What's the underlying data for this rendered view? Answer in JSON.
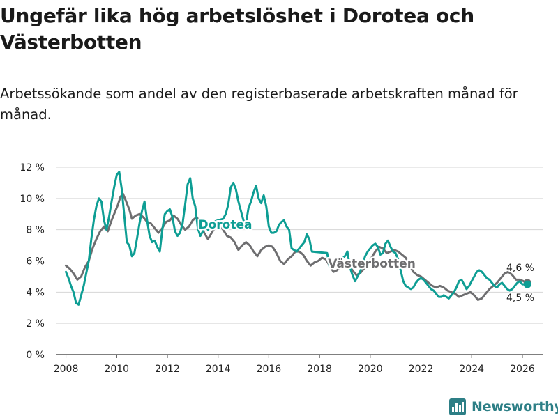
{
  "title": "Ungefär lika hög arbetslöshet i Dorotea och Västerbotten",
  "subtitle": "Arbetssökande som andel av den registerbaserade arbetskraften månad för månad.",
  "brand": "Newsworthy",
  "brand_icon": "newsworthy-logo-icon",
  "colors": {
    "dorotea": "#0e9e94",
    "vasterbotten": "#6e6e70",
    "grid": "#d6d6d6",
    "axis": "#333333",
    "brand": "#2d7f86"
  },
  "chart_data": {
    "type": "line",
    "title": "Ungefär lika hög arbetslöshet i Dorotea och Västerbotten",
    "xlabel": "",
    "ylabel": "",
    "xlim": [
      2007.6,
      2026.8
    ],
    "ylim": [
      0,
      12
    ],
    "yticks": [
      0,
      2,
      4,
      6,
      8,
      10,
      12
    ],
    "ytick_labels": [
      "0 %",
      "2 %",
      "4 %",
      "6 %",
      "8 %",
      "10 %",
      "12 %"
    ],
    "xticks": [
      2008,
      2010,
      2012,
      2014,
      2016,
      2018,
      2020,
      2022,
      2024,
      2026
    ],
    "xtick_labels": [
      "2008",
      "2010",
      "2012",
      "2014",
      "2016",
      "2018",
      "2020",
      "2022",
      "2024",
      "2026"
    ],
    "grid": true,
    "series": [
      {
        "name": "Västerbotten",
        "label": "Västerbotten",
        "end_label": "4,6 %",
        "points": [
          [
            2008.0,
            5.7
          ],
          [
            2008.15,
            5.5
          ],
          [
            2008.3,
            5.2
          ],
          [
            2008.45,
            4.8
          ],
          [
            2008.6,
            5.0
          ],
          [
            2008.75,
            5.6
          ],
          [
            2008.9,
            6.0
          ],
          [
            2009.05,
            6.8
          ],
          [
            2009.2,
            7.4
          ],
          [
            2009.35,
            7.9
          ],
          [
            2009.5,
            8.2
          ],
          [
            2009.65,
            7.9
          ],
          [
            2009.8,
            8.6
          ],
          [
            2009.95,
            9.2
          ],
          [
            2010.05,
            9.6
          ],
          [
            2010.15,
            10.1
          ],
          [
            2010.25,
            10.3
          ],
          [
            2010.35,
            9.9
          ],
          [
            2010.5,
            9.3
          ],
          [
            2010.6,
            8.7
          ],
          [
            2010.75,
            8.9
          ],
          [
            2010.9,
            9.0
          ],
          [
            2011.05,
            8.8
          ],
          [
            2011.2,
            8.5
          ],
          [
            2011.35,
            8.4
          ],
          [
            2011.5,
            8.1
          ],
          [
            2011.65,
            7.8
          ],
          [
            2011.8,
            8.1
          ],
          [
            2011.95,
            8.5
          ],
          [
            2012.1,
            8.6
          ],
          [
            2012.25,
            8.9
          ],
          [
            2012.4,
            8.7
          ],
          [
            2012.55,
            8.3
          ],
          [
            2012.7,
            8.0
          ],
          [
            2012.85,
            8.2
          ],
          [
            2013.0,
            8.6
          ],
          [
            2013.15,
            8.8
          ],
          [
            2013.3,
            8.5
          ],
          [
            2013.45,
            7.8
          ],
          [
            2013.6,
            7.4
          ],
          [
            2013.75,
            7.8
          ],
          [
            2013.9,
            8.2
          ],
          [
            2014.05,
            8.4
          ],
          [
            2014.2,
            8.0
          ],
          [
            2014.35,
            7.6
          ],
          [
            2014.5,
            7.5
          ],
          [
            2014.65,
            7.2
          ],
          [
            2014.8,
            6.7
          ],
          [
            2014.95,
            7.0
          ],
          [
            2015.1,
            7.2
          ],
          [
            2015.25,
            7.0
          ],
          [
            2015.4,
            6.6
          ],
          [
            2015.55,
            6.3
          ],
          [
            2015.7,
            6.7
          ],
          [
            2015.85,
            6.9
          ],
          [
            2016.0,
            7.0
          ],
          [
            2016.15,
            6.9
          ],
          [
            2016.3,
            6.5
          ],
          [
            2016.45,
            6.0
          ],
          [
            2016.6,
            5.8
          ],
          [
            2016.75,
            6.1
          ],
          [
            2016.9,
            6.3
          ],
          [
            2017.05,
            6.6
          ],
          [
            2017.2,
            6.6
          ],
          [
            2017.35,
            6.4
          ],
          [
            2017.5,
            6.0
          ],
          [
            2017.65,
            5.7
          ],
          [
            2017.8,
            5.9
          ],
          [
            2017.95,
            6.0
          ],
          [
            2018.1,
            6.2
          ],
          [
            2018.25,
            6.1
          ],
          [
            2018.4,
            5.7
          ],
          [
            2018.55,
            5.3
          ],
          [
            2018.7,
            5.4
          ],
          [
            2018.85,
            5.7
          ],
          [
            2019.0,
            5.9
          ],
          [
            2019.15,
            5.8
          ],
          [
            2019.3,
            5.4
          ],
          [
            2019.45,
            5.1
          ],
          [
            2019.6,
            5.2
          ],
          [
            2019.75,
            5.5
          ],
          [
            2019.9,
            5.8
          ],
          [
            2020.05,
            6.2
          ],
          [
            2020.2,
            6.6
          ],
          [
            2020.35,
            6.9
          ],
          [
            2020.5,
            6.8
          ],
          [
            2020.65,
            6.5
          ],
          [
            2020.8,
            6.6
          ],
          [
            2020.95,
            6.7
          ],
          [
            2021.1,
            6.6
          ],
          [
            2021.25,
            6.4
          ],
          [
            2021.4,
            6.2
          ],
          [
            2021.55,
            5.7
          ],
          [
            2021.7,
            5.3
          ],
          [
            2021.85,
            5.1
          ],
          [
            2022.0,
            5.0
          ],
          [
            2022.15,
            4.8
          ],
          [
            2022.3,
            4.6
          ],
          [
            2022.45,
            4.4
          ],
          [
            2022.6,
            4.3
          ],
          [
            2022.75,
            4.4
          ],
          [
            2022.9,
            4.3
          ],
          [
            2023.05,
            4.1
          ],
          [
            2023.2,
            4.0
          ],
          [
            2023.35,
            3.9
          ],
          [
            2023.5,
            3.7
          ],
          [
            2023.65,
            3.8
          ],
          [
            2023.8,
            3.9
          ],
          [
            2023.95,
            4.0
          ],
          [
            2024.1,
            3.8
          ],
          [
            2024.25,
            3.5
          ],
          [
            2024.4,
            3.6
          ],
          [
            2024.55,
            3.9
          ],
          [
            2024.7,
            4.2
          ],
          [
            2024.85,
            4.4
          ],
          [
            2025.0,
            4.6
          ],
          [
            2025.15,
            4.9
          ],
          [
            2025.3,
            5.2
          ],
          [
            2025.45,
            5.3
          ],
          [
            2025.6,
            5.1
          ],
          [
            2025.75,
            4.8
          ],
          [
            2025.9,
            4.8
          ],
          [
            2026.05,
            4.7
          ],
          [
            2026.2,
            4.6
          ]
        ]
      },
      {
        "name": "Dorotea",
        "label": "Dorotea",
        "end_label": "4,5 %",
        "points": [
          [
            2008.0,
            5.3
          ],
          [
            2008.1,
            4.9
          ],
          [
            2008.2,
            4.4
          ],
          [
            2008.3,
            4.0
          ],
          [
            2008.4,
            3.3
          ],
          [
            2008.5,
            3.2
          ],
          [
            2008.6,
            3.8
          ],
          [
            2008.7,
            4.4
          ],
          [
            2008.8,
            5.2
          ],
          [
            2008.9,
            6.0
          ],
          [
            2009.0,
            7.4
          ],
          [
            2009.1,
            8.6
          ],
          [
            2009.2,
            9.5
          ],
          [
            2009.3,
            10.0
          ],
          [
            2009.4,
            9.8
          ],
          [
            2009.5,
            8.6
          ],
          [
            2009.6,
            8.0
          ],
          [
            2009.7,
            8.8
          ],
          [
            2009.8,
            9.8
          ],
          [
            2009.9,
            10.7
          ],
          [
            2010.0,
            11.5
          ],
          [
            2010.1,
            11.7
          ],
          [
            2010.2,
            10.6
          ],
          [
            2010.3,
            8.9
          ],
          [
            2010.4,
            7.2
          ],
          [
            2010.5,
            7.0
          ],
          [
            2010.6,
            6.3
          ],
          [
            2010.7,
            6.5
          ],
          [
            2010.8,
            7.4
          ],
          [
            2010.9,
            8.4
          ],
          [
            2011.0,
            9.2
          ],
          [
            2011.1,
            9.8
          ],
          [
            2011.2,
            8.6
          ],
          [
            2011.3,
            7.6
          ],
          [
            2011.4,
            7.2
          ],
          [
            2011.5,
            7.3
          ],
          [
            2011.6,
            6.9
          ],
          [
            2011.7,
            6.6
          ],
          [
            2011.8,
            8.0
          ],
          [
            2011.9,
            9.0
          ],
          [
            2012.0,
            9.2
          ],
          [
            2012.1,
            9.3
          ],
          [
            2012.2,
            8.8
          ],
          [
            2012.3,
            7.9
          ],
          [
            2012.4,
            7.6
          ],
          [
            2012.5,
            7.8
          ],
          [
            2012.6,
            8.4
          ],
          [
            2012.7,
            9.6
          ],
          [
            2012.8,
            10.9
          ],
          [
            2012.9,
            11.3
          ],
          [
            2013.0,
            10.0
          ],
          [
            2013.1,
            9.5
          ],
          [
            2013.2,
            8.1
          ],
          [
            2013.3,
            7.6
          ],
          [
            2013.4,
            7.9
          ],
          [
            2013.5,
            8.3
          ],
          [
            2013.6,
            8.0
          ],
          [
            2013.7,
            8.1
          ],
          [
            2013.8,
            8.5
          ],
          [
            2014.2,
            8.7
          ],
          [
            2014.3,
            9.0
          ],
          [
            2014.4,
            9.6
          ],
          [
            2014.5,
            10.7
          ],
          [
            2014.6,
            11.0
          ],
          [
            2014.7,
            10.6
          ],
          [
            2014.8,
            9.8
          ],
          [
            2014.9,
            9.2
          ],
          [
            2015.0,
            8.6
          ],
          [
            2015.1,
            8.4
          ],
          [
            2015.2,
            9.4
          ],
          [
            2015.3,
            9.8
          ],
          [
            2015.4,
            10.4
          ],
          [
            2015.5,
            10.8
          ],
          [
            2015.6,
            10.0
          ],
          [
            2015.7,
            9.7
          ],
          [
            2015.8,
            10.2
          ],
          [
            2015.9,
            9.5
          ],
          [
            2016.0,
            8.2
          ],
          [
            2016.1,
            7.8
          ],
          [
            2016.2,
            7.8
          ],
          [
            2016.3,
            7.9
          ],
          [
            2016.4,
            8.3
          ],
          [
            2016.5,
            8.5
          ],
          [
            2016.6,
            8.6
          ],
          [
            2016.7,
            8.2
          ],
          [
            2016.8,
            8.0
          ],
          [
            2016.9,
            6.8
          ],
          [
            2017.0,
            6.7
          ],
          [
            2017.1,
            6.6
          ],
          [
            2017.2,
            6.8
          ],
          [
            2017.3,
            7.0
          ],
          [
            2017.4,
            7.2
          ],
          [
            2017.5,
            7.7
          ],
          [
            2017.6,
            7.4
          ],
          [
            2017.7,
            6.6
          ],
          [
            2018.3,
            6.5
          ],
          [
            2018.4,
            5.6
          ],
          [
            2019.0,
            6.3
          ],
          [
            2019.1,
            6.6
          ],
          [
            2019.2,
            5.6
          ],
          [
            2019.3,
            5.1
          ],
          [
            2019.4,
            4.7
          ],
          [
            2019.5,
            5.0
          ],
          [
            2019.6,
            5.3
          ],
          [
            2019.7,
            5.8
          ],
          [
            2019.8,
            6.3
          ],
          [
            2019.9,
            6.6
          ],
          [
            2020.0,
            6.8
          ],
          [
            2020.1,
            7.0
          ],
          [
            2020.2,
            7.1
          ],
          [
            2020.3,
            6.9
          ],
          [
            2020.4,
            6.4
          ],
          [
            2020.5,
            6.5
          ],
          [
            2020.6,
            7.1
          ],
          [
            2020.7,
            7.3
          ],
          [
            2020.8,
            6.9
          ],
          [
            2020.9,
            6.6
          ],
          [
            2021.0,
            6.5
          ],
          [
            2021.1,
            6.1
          ],
          [
            2021.2,
            5.4
          ],
          [
            2021.3,
            4.7
          ],
          [
            2021.4,
            4.4
          ],
          [
            2021.5,
            4.3
          ],
          [
            2021.6,
            4.2
          ],
          [
            2021.7,
            4.3
          ],
          [
            2021.8,
            4.6
          ],
          [
            2021.9,
            4.8
          ],
          [
            2022.0,
            4.9
          ],
          [
            2022.1,
            4.8
          ],
          [
            2022.2,
            4.6
          ],
          [
            2022.3,
            4.4
          ],
          [
            2022.4,
            4.2
          ],
          [
            2022.5,
            4.1
          ],
          [
            2022.6,
            3.9
          ],
          [
            2022.7,
            3.7
          ],
          [
            2022.8,
            3.7
          ],
          [
            2022.9,
            3.8
          ],
          [
            2023.0,
            3.7
          ],
          [
            2023.1,
            3.6
          ],
          [
            2023.2,
            3.8
          ],
          [
            2023.3,
            4.0
          ],
          [
            2023.4,
            4.3
          ],
          [
            2023.5,
            4.7
          ],
          [
            2023.6,
            4.8
          ],
          [
            2023.7,
            4.5
          ],
          [
            2023.8,
            4.2
          ],
          [
            2023.9,
            4.4
          ],
          [
            2024.0,
            4.7
          ],
          [
            2024.1,
            5.0
          ],
          [
            2024.2,
            5.3
          ],
          [
            2024.3,
            5.4
          ],
          [
            2024.4,
            5.3
          ],
          [
            2024.5,
            5.1
          ],
          [
            2024.6,
            4.9
          ],
          [
            2024.7,
            4.8
          ],
          [
            2024.8,
            4.6
          ],
          [
            2024.9,
            4.4
          ],
          [
            2025.0,
            4.3
          ],
          [
            2025.1,
            4.5
          ],
          [
            2025.2,
            4.6
          ],
          [
            2025.3,
            4.4
          ],
          [
            2025.4,
            4.2
          ],
          [
            2025.5,
            4.1
          ],
          [
            2025.6,
            4.2
          ],
          [
            2025.7,
            4.4
          ],
          [
            2025.8,
            4.6
          ],
          [
            2025.9,
            4.7
          ],
          [
            2026.0,
            4.5
          ],
          [
            2026.1,
            4.5
          ],
          [
            2026.2,
            4.5
          ]
        ]
      }
    ]
  }
}
